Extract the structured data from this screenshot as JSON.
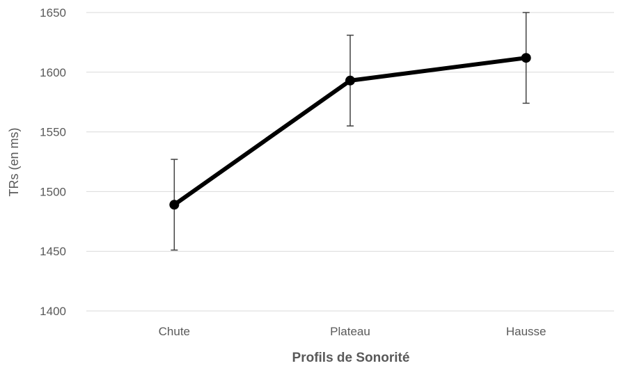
{
  "chart_data": {
    "type": "line",
    "categories": [
      "Chute",
      "Plateau",
      "Hausse"
    ],
    "series": [
      {
        "values": [
          1489,
          1593,
          1612
        ],
        "error": [
          38,
          38,
          38
        ]
      }
    ],
    "title": "",
    "xlabel": "Profils de Sonorité",
    "ylabel": "TRs (en ms)",
    "ylim": [
      1400,
      1650
    ],
    "yticks": [
      1400,
      1450,
      1500,
      1550,
      1600,
      1650
    ],
    "grid": true,
    "legend": "none",
    "colors": {
      "line": "#000000",
      "marker": "#000000",
      "error_bar": "#404040",
      "grid": "#d9d9d9",
      "text": "#595959"
    }
  }
}
